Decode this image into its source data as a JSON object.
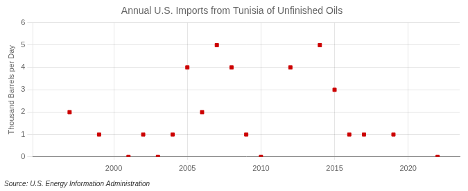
{
  "chart_data": {
    "type": "scatter",
    "title": "Annual U.S. Imports from Tunisia of Unfinished Oils",
    "y_label": "Thousand Barrels per Day",
    "annotations": [
      "Source: U.S. Energy Information Administration"
    ],
    "x": [
      1997,
      1999,
      2001,
      2002,
      2003,
      2004,
      2005,
      2006,
      2007,
      2008,
      2009,
      2010,
      2012,
      2014,
      2015,
      2016,
      2017,
      2019,
      2022
    ],
    "values": [
      2,
      1,
      0,
      1,
      0,
      1,
      4,
      2,
      5,
      4,
      1,
      0,
      4,
      5,
      3,
      1,
      1,
      1,
      0
    ],
    "color": "#cc0000",
    "marker": "square",
    "xlim": [
      1994.5,
      2023.5
    ],
    "ylim": [
      0,
      6
    ],
    "xticks": [
      2000,
      2005,
      2010,
      2015,
      2020
    ],
    "yticks": [
      0,
      1,
      2,
      3,
      4,
      5,
      6
    ],
    "grid": true
  }
}
